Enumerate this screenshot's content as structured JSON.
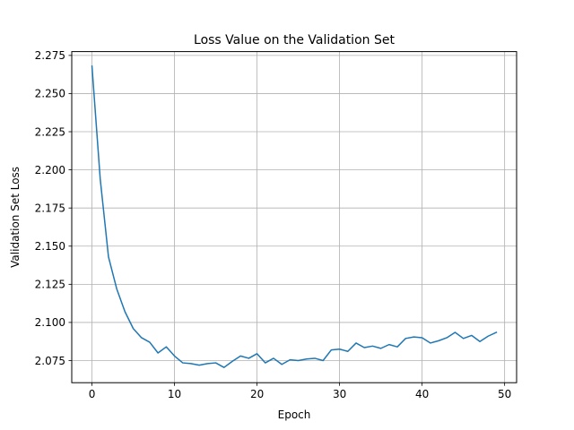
{
  "chart_data": {
    "type": "line",
    "title": "Loss Value on the Validation Set",
    "xlabel": "Epoch",
    "ylabel": "Validation Set Loss",
    "xlim": [
      -2.45,
      51.45
    ],
    "ylim": [
      2.0605,
      2.2775
    ],
    "grid": true,
    "line_color": "#1f77b4",
    "xticks": [
      0,
      10,
      20,
      30,
      40,
      50
    ],
    "xtick_labels": [
      "0",
      "10",
      "20",
      "30",
      "40",
      "50"
    ],
    "yticks": [
      2.075,
      2.1,
      2.125,
      2.15,
      2.175,
      2.2,
      2.225,
      2.25,
      2.275
    ],
    "ytick_labels": [
      "2.075",
      "2.100",
      "2.125",
      "2.150",
      "2.175",
      "2.200",
      "2.225",
      "2.250",
      "2.275"
    ],
    "series": [
      {
        "x": [
          0,
          1,
          2,
          3,
          4,
          5,
          6,
          7,
          8,
          9,
          10,
          11,
          12,
          13,
          14,
          15,
          16,
          17,
          18,
          19,
          20,
          21,
          22,
          23,
          24,
          25,
          26,
          27,
          28,
          29,
          30,
          31,
          32,
          33,
          34,
          35,
          36,
          37,
          38,
          39,
          40,
          41,
          42,
          43,
          44,
          45,
          46,
          47,
          48,
          49
        ],
        "y": [
          2.268,
          2.194,
          2.143,
          2.122,
          2.107,
          2.096,
          2.09,
          2.087,
          2.08,
          2.084,
          2.078,
          2.0735,
          2.073,
          2.072,
          2.073,
          2.0735,
          2.0705,
          2.0745,
          2.078,
          2.0765,
          2.0795,
          2.0735,
          2.0765,
          2.0725,
          2.0755,
          2.075,
          2.076,
          2.0765,
          2.075,
          2.082,
          2.0825,
          2.081,
          2.0865,
          2.0835,
          2.0845,
          2.083,
          2.0855,
          2.084,
          2.0895,
          2.0905,
          2.09,
          2.0865,
          2.088,
          2.09,
          2.0935,
          2.0895,
          2.0915,
          2.0875,
          2.091,
          2.0935
        ]
      }
    ]
  }
}
